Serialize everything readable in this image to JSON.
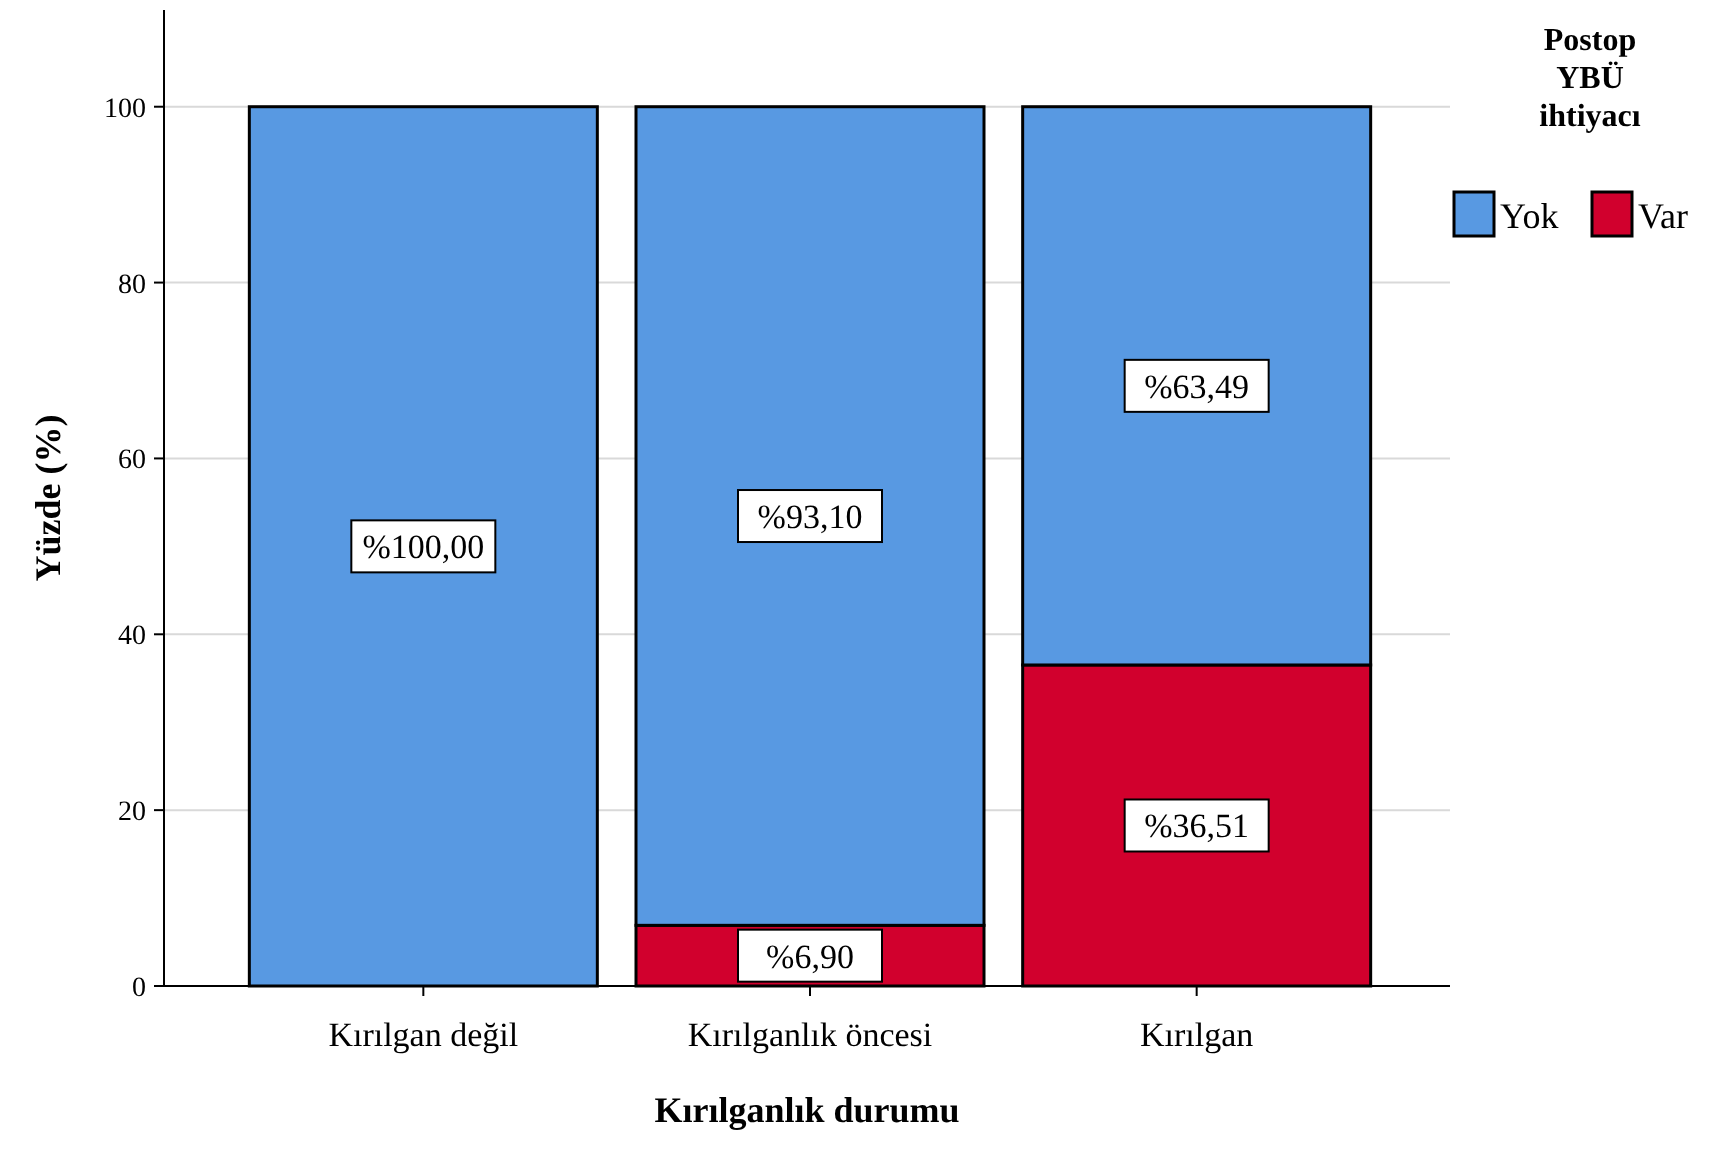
{
  "chart_data": {
    "type": "bar",
    "stacked": true,
    "xlabel": "Kırılganlık durumu",
    "ylabel": "Yüzde (%)",
    "legend_title": "Postop YBÜ ihtiyacı",
    "legend": "top right",
    "grid": "y",
    "categories": [
      "Kırılgan değil",
      "Kırılganlık öncesi",
      "Kırılgan"
    ],
    "ylim": [
      0,
      111
    ],
    "yticks": [
      0,
      20,
      40,
      60,
      80,
      100
    ],
    "series": [
      {
        "name": "Var",
        "color": "#d1002d",
        "values": [
          0,
          6.9,
          36.51
        ],
        "value_labels": [
          null,
          "%6,90",
          "%36,51"
        ]
      },
      {
        "name": "Yok",
        "color": "#5899e2",
        "values": [
          100,
          93.1,
          63.49
        ],
        "value_labels": [
          "%100,00",
          "%93,10",
          "%63,49"
        ]
      }
    ]
  }
}
